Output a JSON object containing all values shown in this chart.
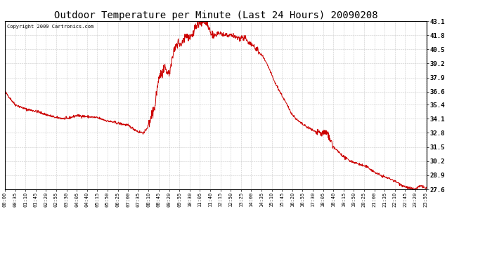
{
  "title": "Outdoor Temperature per Minute (Last 24 Hours) 20090208",
  "copyright": "Copyright 2009 Cartronics.com",
  "line_color": "#cc0000",
  "background_color": "#ffffff",
  "grid_color": "#bbbbbb",
  "y_ticks": [
    27.6,
    28.9,
    30.2,
    31.5,
    32.8,
    34.1,
    35.4,
    36.6,
    37.9,
    39.2,
    40.5,
    41.8,
    43.1
  ],
  "ylim": [
    27.6,
    43.1
  ],
  "x_tick_labels": [
    "00:00",
    "00:35",
    "01:10",
    "01:45",
    "02:20",
    "02:55",
    "03:30",
    "04:05",
    "04:40",
    "05:15",
    "05:50",
    "06:25",
    "07:00",
    "07:35",
    "08:10",
    "08:45",
    "09:20",
    "09:55",
    "10:30",
    "11:05",
    "11:40",
    "12:15",
    "12:50",
    "13:25",
    "14:00",
    "14:35",
    "15:10",
    "15:45",
    "16:20",
    "16:55",
    "17:30",
    "18:05",
    "18:40",
    "19:15",
    "19:50",
    "20:25",
    "21:00",
    "21:35",
    "22:10",
    "22:45",
    "23:20",
    "23:55"
  ],
  "key_points_x": [
    0,
    35,
    70,
    105,
    140,
    175,
    210,
    245,
    280,
    315,
    350,
    385,
    420,
    455,
    475,
    490,
    510,
    525,
    545,
    560,
    570,
    580,
    590,
    600,
    610,
    620,
    630,
    640,
    650,
    660,
    670,
    680,
    690,
    700,
    710,
    720,
    730,
    740,
    750,
    760,
    770,
    780,
    800,
    820,
    840,
    860,
    880,
    900,
    920,
    940,
    960,
    980,
    1000,
    1020,
    1040,
    1060,
    1080,
    1100,
    1120,
    1140,
    1160,
    1180,
    1200,
    1220,
    1240,
    1260,
    1280,
    1300,
    1320,
    1340,
    1360,
    1380,
    1400,
    1410,
    1420,
    1430,
    1435
  ],
  "key_points_y": [
    36.6,
    35.4,
    35.0,
    34.8,
    34.5,
    34.2,
    34.1,
    34.4,
    34.3,
    34.2,
    33.9,
    33.7,
    33.5,
    32.9,
    32.8,
    33.5,
    35.0,
    37.9,
    38.6,
    38.2,
    39.5,
    40.7,
    41.2,
    40.8,
    41.5,
    41.8,
    41.5,
    42.0,
    42.5,
    42.8,
    43.0,
    43.1,
    42.8,
    42.0,
    41.8,
    41.8,
    42.0,
    41.9,
    41.8,
    41.7,
    41.8,
    41.7,
    41.5,
    41.5,
    41.0,
    40.5,
    39.8,
    38.8,
    37.5,
    36.5,
    35.5,
    34.5,
    33.9,
    33.5,
    33.2,
    32.9,
    32.8,
    32.8,
    31.5,
    31.0,
    30.5,
    30.2,
    30.0,
    29.8,
    29.6,
    29.2,
    28.9,
    28.7,
    28.5,
    28.2,
    27.9,
    27.7,
    27.6,
    27.8,
    27.9,
    27.8,
    27.7
  ],
  "title_fontsize": 10,
  "copyright_fontsize": 5,
  "ytick_fontsize": 6.5,
  "xtick_fontsize": 5
}
